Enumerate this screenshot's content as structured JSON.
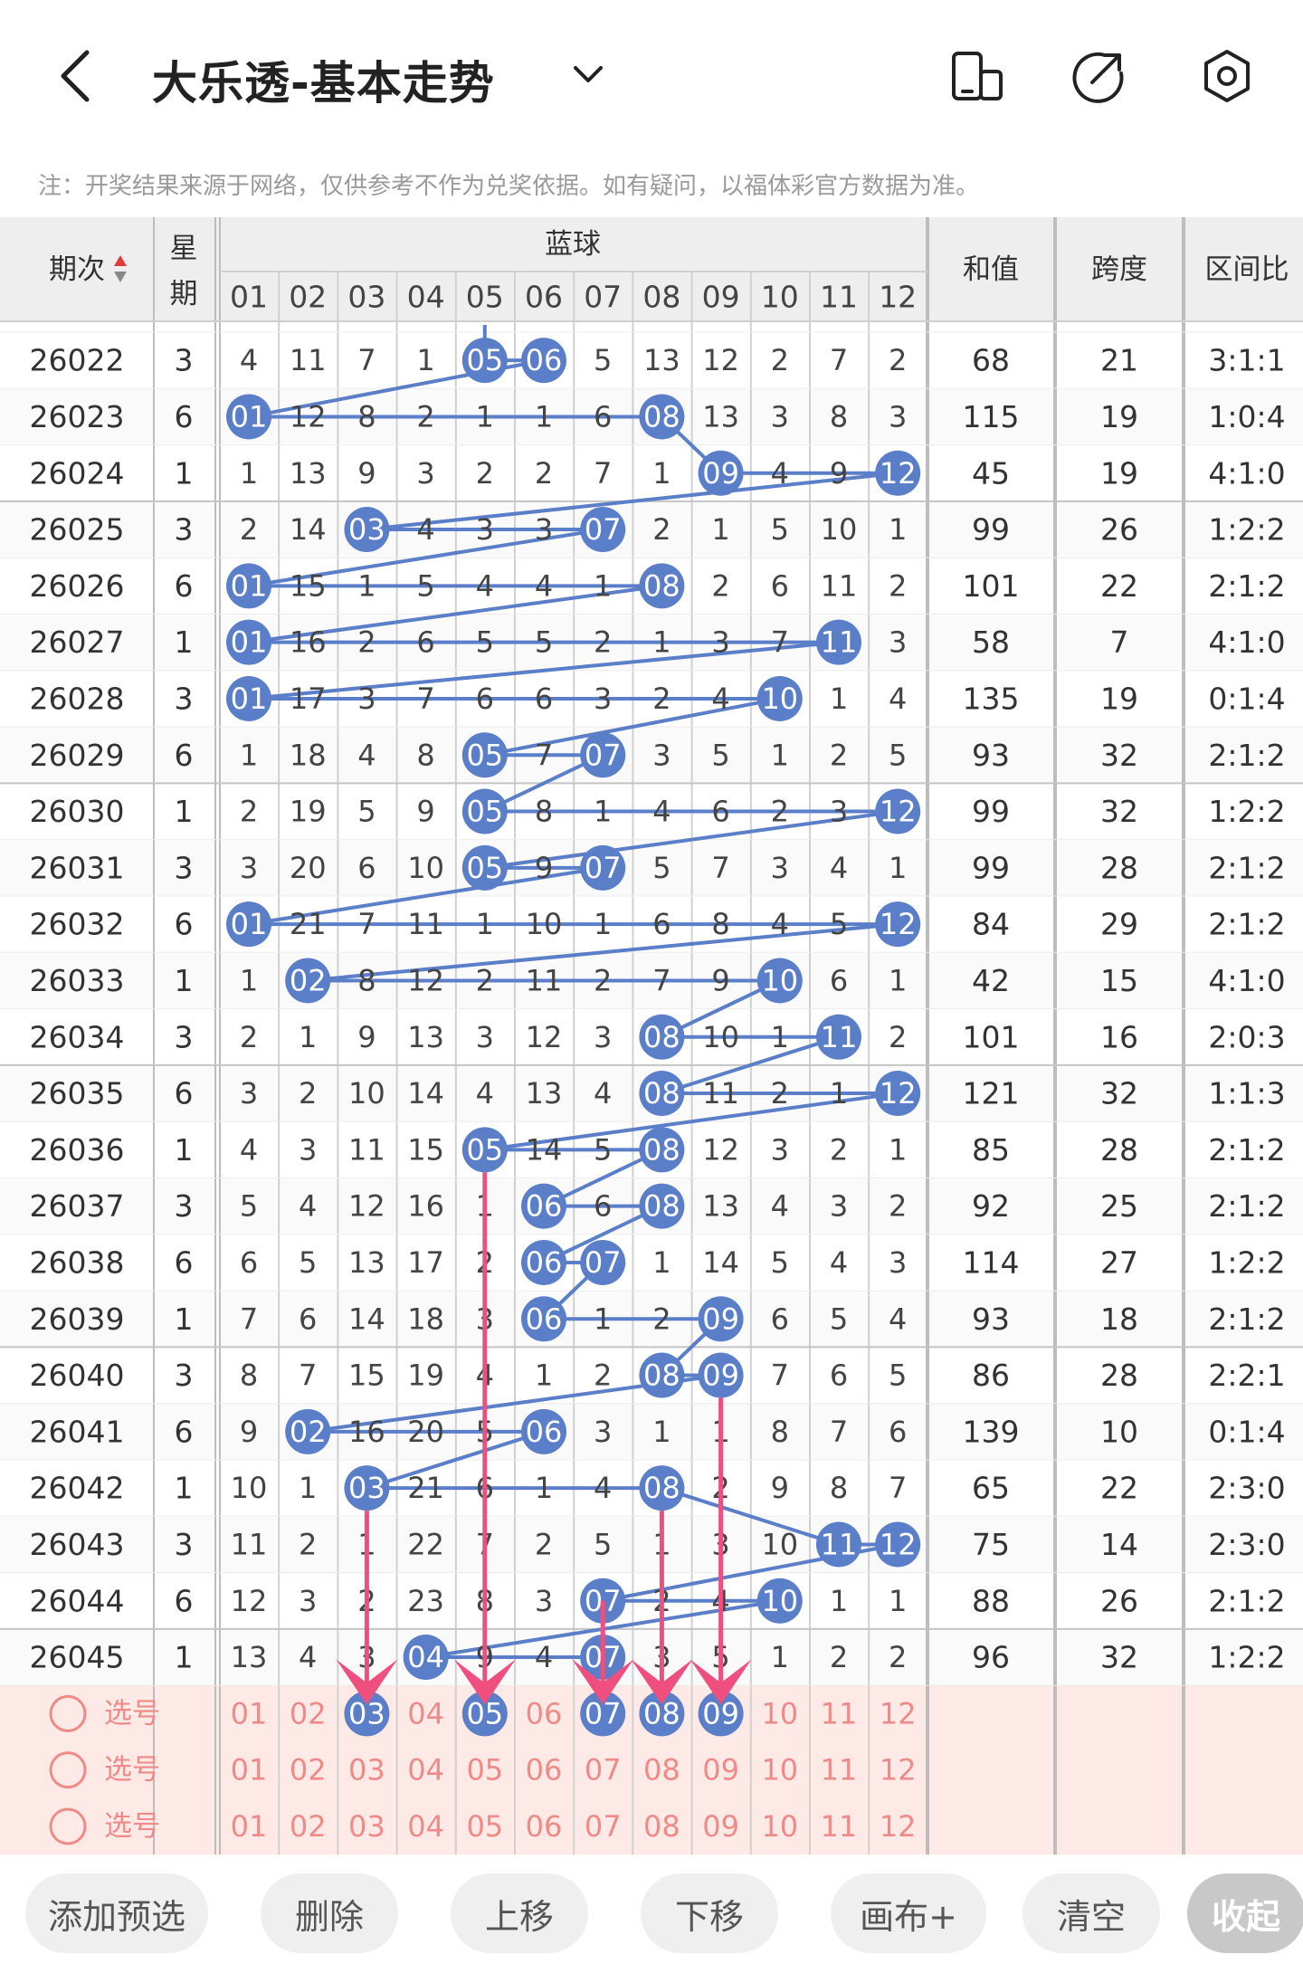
{
  "header": {
    "title": "大乐透-基本走势",
    "back_icon": "back-arrow-icon",
    "dropdown_icon": "chevron-down-icon",
    "actions": [
      "device-icon",
      "share-icon",
      "settings-icon"
    ]
  },
  "notice": "注：开奖结果来源于网络，仅供参考不作为兑奖依据。如有疑问，以福体彩官方数据为准。",
  "table": {
    "col_issue": "期次",
    "col_week": [
      "星",
      "期"
    ],
    "group_blue": "蓝球",
    "ball_numbers": [
      "01",
      "02",
      "03",
      "04",
      "05",
      "06",
      "07",
      "08",
      "09",
      "10",
      "11",
      "12"
    ],
    "col_sum": "和值",
    "col_span": "跨度",
    "col_ratio": "区间比",
    "rows": [
      {
        "issue": "26022",
        "week": "3",
        "cells": [
          "4",
          "11",
          "7",
          "1",
          "05",
          "06",
          "5",
          "13",
          "12",
          "2",
          "7",
          "2"
        ],
        "hits": [
          4,
          5
        ],
        "sum": "68",
        "span": "21",
        "ratio": "3:1:1"
      },
      {
        "issue": "26023",
        "week": "6",
        "cells": [
          "01",
          "12",
          "8",
          "2",
          "1",
          "1",
          "6",
          "08",
          "13",
          "3",
          "8",
          "3"
        ],
        "hits": [
          0,
          7
        ],
        "sum": "115",
        "span": "19",
        "ratio": "1:0:4"
      },
      {
        "issue": "26024",
        "week": "1",
        "cells": [
          "1",
          "13",
          "9",
          "3",
          "2",
          "2",
          "7",
          "1",
          "09",
          "4",
          "9",
          "12"
        ],
        "hits": [
          8,
          11
        ],
        "sum": "45",
        "span": "19",
        "ratio": "4:1:0"
      },
      {
        "issue": "26025",
        "week": "3",
        "cells": [
          "2",
          "14",
          "03",
          "4",
          "3",
          "3",
          "07",
          "2",
          "1",
          "5",
          "10",
          "1"
        ],
        "hits": [
          2,
          6
        ],
        "sum": "99",
        "span": "26",
        "ratio": "1:2:2"
      },
      {
        "issue": "26026",
        "week": "6",
        "cells": [
          "01",
          "15",
          "1",
          "5",
          "4",
          "4",
          "1",
          "08",
          "2",
          "6",
          "11",
          "2"
        ],
        "hits": [
          0,
          7
        ],
        "sum": "101",
        "span": "22",
        "ratio": "2:1:2"
      },
      {
        "issue": "26027",
        "week": "1",
        "cells": [
          "01",
          "16",
          "2",
          "6",
          "5",
          "5",
          "2",
          "1",
          "3",
          "7",
          "11",
          "3"
        ],
        "hits": [
          0,
          10
        ],
        "sum": "58",
        "span": "7",
        "ratio": "4:1:0"
      },
      {
        "issue": "26028",
        "week": "3",
        "cells": [
          "01",
          "17",
          "3",
          "7",
          "6",
          "6",
          "3",
          "2",
          "4",
          "10",
          "1",
          "4"
        ],
        "hits": [
          0,
          9
        ],
        "sum": "135",
        "span": "19",
        "ratio": "0:1:4"
      },
      {
        "issue": "26029",
        "week": "6",
        "cells": [
          "1",
          "18",
          "4",
          "8",
          "05",
          "7",
          "07",
          "3",
          "5",
          "1",
          "2",
          "5"
        ],
        "hits": [
          4,
          6
        ],
        "sum": "93",
        "span": "32",
        "ratio": "2:1:2"
      },
      {
        "issue": "26030",
        "week": "1",
        "cells": [
          "2",
          "19",
          "5",
          "9",
          "05",
          "8",
          "1",
          "4",
          "6",
          "2",
          "3",
          "12"
        ],
        "hits": [
          4,
          11
        ],
        "sum": "99",
        "span": "32",
        "ratio": "1:2:2"
      },
      {
        "issue": "26031",
        "week": "3",
        "cells": [
          "3",
          "20",
          "6",
          "10",
          "05",
          "9",
          "07",
          "5",
          "7",
          "3",
          "4",
          "1"
        ],
        "hits": [
          4,
          6
        ],
        "sum": "99",
        "span": "28",
        "ratio": "2:1:2"
      },
      {
        "issue": "26032",
        "week": "6",
        "cells": [
          "01",
          "21",
          "7",
          "11",
          "1",
          "10",
          "1",
          "6",
          "8",
          "4",
          "5",
          "12"
        ],
        "hits": [
          0,
          11
        ],
        "sum": "84",
        "span": "29",
        "ratio": "2:1:2"
      },
      {
        "issue": "26033",
        "week": "1",
        "cells": [
          "1",
          "02",
          "8",
          "12",
          "2",
          "11",
          "2",
          "7",
          "9",
          "10",
          "6",
          "1"
        ],
        "hits": [
          1,
          9
        ],
        "sum": "42",
        "span": "15",
        "ratio": "4:1:0"
      },
      {
        "issue": "26034",
        "week": "3",
        "cells": [
          "2",
          "1",
          "9",
          "13",
          "3",
          "12",
          "3",
          "08",
          "10",
          "1",
          "11",
          "2"
        ],
        "hits": [
          7,
          10
        ],
        "sum": "101",
        "span": "16",
        "ratio": "2:0:3"
      },
      {
        "issue": "26035",
        "week": "6",
        "cells": [
          "3",
          "2",
          "10",
          "14",
          "4",
          "13",
          "4",
          "08",
          "11",
          "2",
          "1",
          "12"
        ],
        "hits": [
          7,
          11
        ],
        "sum": "121",
        "span": "32",
        "ratio": "1:1:3"
      },
      {
        "issue": "26036",
        "week": "1",
        "cells": [
          "4",
          "3",
          "11",
          "15",
          "05",
          "14",
          "5",
          "08",
          "12",
          "3",
          "2",
          "1"
        ],
        "hits": [
          4,
          7
        ],
        "sum": "85",
        "span": "28",
        "ratio": "2:1:2"
      },
      {
        "issue": "26037",
        "week": "3",
        "cells": [
          "5",
          "4",
          "12",
          "16",
          "1",
          "06",
          "6",
          "08",
          "13",
          "4",
          "3",
          "2"
        ],
        "hits": [
          5,
          7
        ],
        "sum": "92",
        "span": "25",
        "ratio": "2:1:2"
      },
      {
        "issue": "26038",
        "week": "6",
        "cells": [
          "6",
          "5",
          "13",
          "17",
          "2",
          "06",
          "07",
          "1",
          "14",
          "5",
          "4",
          "3"
        ],
        "hits": [
          5,
          6
        ],
        "sum": "114",
        "span": "27",
        "ratio": "1:2:2"
      },
      {
        "issue": "26039",
        "week": "1",
        "cells": [
          "7",
          "6",
          "14",
          "18",
          "3",
          "06",
          "1",
          "2",
          "09",
          "6",
          "5",
          "4"
        ],
        "hits": [
          5,
          8
        ],
        "sum": "93",
        "span": "18",
        "ratio": "2:1:2"
      },
      {
        "issue": "26040",
        "week": "3",
        "cells": [
          "8",
          "7",
          "15",
          "19",
          "4",
          "1",
          "2",
          "08",
          "09",
          "7",
          "6",
          "5"
        ],
        "hits": [
          7,
          8
        ],
        "sum": "86",
        "span": "28",
        "ratio": "2:2:1"
      },
      {
        "issue": "26041",
        "week": "6",
        "cells": [
          "9",
          "02",
          "16",
          "20",
          "5",
          "06",
          "3",
          "1",
          "1",
          "8",
          "7",
          "6"
        ],
        "hits": [
          1,
          5
        ],
        "sum": "139",
        "span": "10",
        "ratio": "0:1:4"
      },
      {
        "issue": "26042",
        "week": "1",
        "cells": [
          "10",
          "1",
          "03",
          "21",
          "6",
          "1",
          "4",
          "08",
          "2",
          "9",
          "8",
          "7"
        ],
        "hits": [
          2,
          7
        ],
        "sum": "65",
        "span": "22",
        "ratio": "2:3:0"
      },
      {
        "issue": "26043",
        "week": "3",
        "cells": [
          "11",
          "2",
          "1",
          "22",
          "7",
          "2",
          "5",
          "1",
          "3",
          "10",
          "11",
          "12"
        ],
        "hits": [
          10,
          11
        ],
        "sum": "75",
        "span": "14",
        "ratio": "2:3:0"
      },
      {
        "issue": "26044",
        "week": "6",
        "cells": [
          "12",
          "3",
          "2",
          "23",
          "8",
          "3",
          "07",
          "2",
          "4",
          "10",
          "1",
          "1"
        ],
        "hits": [
          6,
          9
        ],
        "sum": "88",
        "span": "26",
        "ratio": "2:1:2"
      },
      {
        "issue": "26045",
        "week": "1",
        "cells": [
          "13",
          "4",
          "3",
          "04",
          "9",
          "4",
          "07",
          "3",
          "5",
          "1",
          "2",
          "2"
        ],
        "hits": [
          3,
          6
        ],
        "sum": "96",
        "span": "32",
        "ratio": "1:2:2"
      }
    ],
    "select_label": "选号",
    "select_rows": [
      {
        "selected": [
          2,
          4,
          6,
          7,
          8
        ]
      },
      {
        "selected": []
      },
      {
        "selected": []
      }
    ],
    "arrows_to": [
      2,
      4,
      6,
      7,
      8
    ]
  },
  "buttons": [
    "添加预选",
    "删除",
    "上移",
    "下移",
    "画布+",
    "清空",
    "收起"
  ],
  "colors": {
    "ball_blue": "#5b7ec9",
    "arrow_pink": "#ef4f7f",
    "select_bg": "#fde9e5",
    "select_text": "#ef8a88",
    "header_bg": "#eeeeee"
  }
}
